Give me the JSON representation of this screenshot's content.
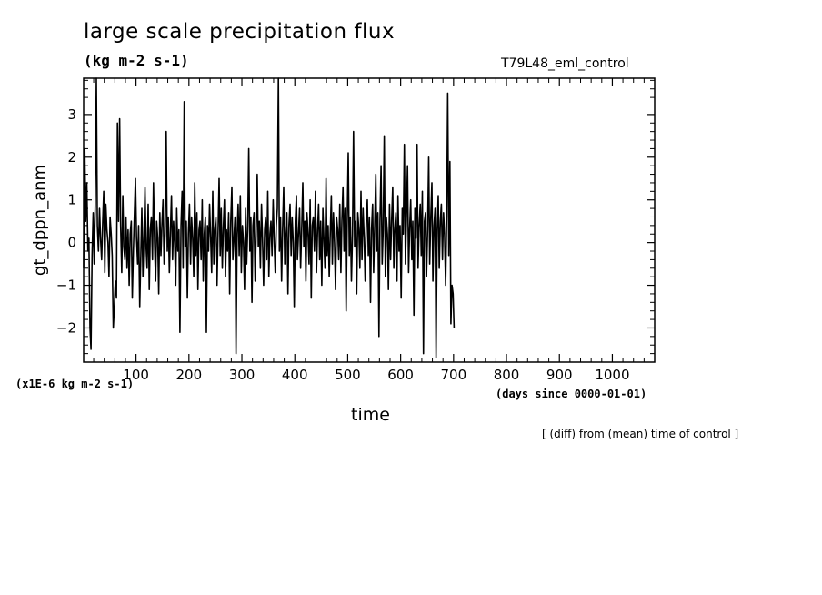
{
  "chart_data": {
    "type": "line",
    "title": "large scale precipitation flux",
    "units": "(kg m-2 s-1)",
    "run_label": "T79L48_eml_control",
    "ylabel": "gt_dppn_anm",
    "xlabel": "time",
    "x_units": "(days since 0000-01-01)",
    "y_scale_label": "(x1E-6 kg m-2 s-1)",
    "note": "[ (diff) from (mean) time of control ]",
    "xlim": [
      1,
      1080
    ],
    "ylim": [
      -2.8,
      3.85
    ],
    "x_ticks": [
      100,
      200,
      300,
      400,
      500,
      600,
      700,
      800,
      900,
      1000
    ],
    "y_ticks": [
      -2,
      -1,
      0,
      1,
      2,
      3
    ],
    "grid": false,
    "series": [
      {
        "x_start": 1,
        "x_step": 2,
        "values": [
          -0.6,
          2.2,
          0.5,
          1.4,
          -0.2,
          0.1,
          -2.0,
          -2.5,
          -0.3,
          0.7,
          -0.5,
          0.9,
          3.85,
          0.4,
          -0.2,
          0.8,
          0.1,
          -0.4,
          0.5,
          1.2,
          -0.7,
          0.9,
          0.3,
          0.0,
          -0.8,
          0.6,
          0.2,
          -0.3,
          -2.0,
          -1.5,
          -0.9,
          -1.3,
          2.8,
          0.5,
          2.9,
          0.4,
          -0.7,
          1.1,
          -0.1,
          -0.4,
          0.6,
          -0.6,
          0.3,
          -1.0,
          0.2,
          0.5,
          -1.3,
          -0.2,
          0.7,
          1.5,
          0.1,
          -0.5,
          0.4,
          -1.5,
          -0.3,
          0.8,
          -0.8,
          0.2,
          1.3,
          -0.1,
          -0.6,
          0.9,
          -1.1,
          0.3,
          0.6,
          -0.4,
          1.4,
          0.0,
          -0.9,
          0.5,
          0.1,
          -1.2,
          0.7,
          -0.3,
          0.4,
          1.0,
          -0.5,
          0.2,
          2.6,
          -0.2,
          0.6,
          -0.7,
          0.3,
          1.1,
          -0.4,
          0.5,
          0.0,
          -1.0,
          0.8,
          -0.2,
          0.3,
          -2.1,
          0.4,
          1.2,
          -0.6,
          3.3,
          -0.1,
          0.5,
          -1.3,
          0.2,
          0.9,
          -0.5,
          0.6,
          0.1,
          -0.8,
          1.4,
          -0.3,
          0.7,
          -1.1,
          0.3,
          0.5,
          -0.4,
          1.0,
          -0.9,
          0.2,
          0.6,
          -2.1,
          0.4,
          -0.2,
          0.9,
          0.1,
          -0.7,
          1.2,
          -0.5,
          0.3,
          0.6,
          -1.0,
          0.2,
          1.5,
          -0.3,
          0.8,
          -0.6,
          0.4,
          1.0,
          -0.8,
          0.3,
          -0.2,
          0.7,
          -1.2,
          0.5,
          1.3,
          -0.4,
          0.1,
          0.6,
          -2.6,
          0.2,
          0.9,
          -0.3,
          1.1,
          -0.7,
          0.4,
          0.0,
          -1.1,
          0.8,
          -0.5,
          0.3,
          2.2,
          -0.2,
          0.6,
          -1.4,
          0.4,
          0.7,
          -0.9,
          0.2,
          1.6,
          -0.1,
          0.5,
          -0.6,
          0.9,
          0.1,
          -1.0,
          0.3,
          0.6,
          -0.4,
          1.2,
          -0.8,
          0.2,
          0.5,
          -0.3,
          1.0,
          0.1,
          -0.7,
          0.4,
          0.8,
          3.85,
          -0.2,
          0.6,
          -0.9,
          0.3,
          1.3,
          -0.5,
          0.2,
          0.7,
          -1.2,
          0.4,
          0.9,
          -0.3,
          0.6,
          0.0,
          -1.5,
          0.5,
          1.1,
          -0.4,
          0.2,
          0.8,
          -0.6,
          0.3,
          1.4,
          -0.1,
          0.5,
          -0.9,
          0.7,
          0.2,
          -0.5,
          1.0,
          -1.3,
          0.4,
          0.6,
          -0.2,
          1.2,
          -0.7,
          0.3,
          0.9,
          -0.4,
          0.5,
          -1.0,
          0.8,
          0.1,
          -0.6,
          1.5,
          -0.3,
          0.4,
          -0.8,
          0.2,
          1.1,
          -0.5,
          0.7,
          0.0,
          -1.1,
          0.6,
          0.3,
          -0.4,
          0.9,
          -0.7,
          0.5,
          1.3,
          -0.2,
          0.8,
          -1.6,
          0.4,
          2.1,
          -0.3,
          0.6,
          -0.9,
          0.2,
          2.6,
          -0.1,
          0.5,
          -1.2,
          0.7,
          0.3,
          -0.6,
          1.2,
          -0.4,
          0.8,
          0.1,
          -0.9,
          0.5,
          1.0,
          -0.3,
          0.6,
          -1.4,
          0.3,
          0.9,
          -0.7,
          0.4,
          1.6,
          -0.2,
          0.7,
          -2.2,
          0.5,
          1.8,
          -0.5,
          0.3,
          2.5,
          -0.8,
          0.6,
          0.2,
          -1.1,
          0.9,
          -0.4,
          0.5,
          1.3,
          -0.6,
          0.3,
          0.7,
          -0.9,
          1.1,
          -0.2,
          0.4,
          -1.3,
          0.8,
          0.2,
          2.3,
          -0.5,
          0.6,
          1.8,
          -0.7,
          0.3,
          1.0,
          -0.4,
          0.5,
          -1.7,
          0.8,
          0.1,
          2.3,
          -0.6,
          0.4,
          0.9,
          -0.3,
          1.2,
          -2.6,
          0.5,
          0.7,
          -0.8,
          0.3,
          2.0,
          -0.5,
          0.6,
          1.4,
          -0.9,
          0.4,
          0.8,
          -2.7,
          0.3,
          1.1,
          -0.6,
          0.5,
          0.9,
          -0.4,
          0.7,
          0.2,
          -1.0,
          0.6,
          3.5,
          -0.3,
          1.9,
          -1.9,
          -1.0,
          -1.2,
          -2.0
        ]
      }
    ]
  }
}
